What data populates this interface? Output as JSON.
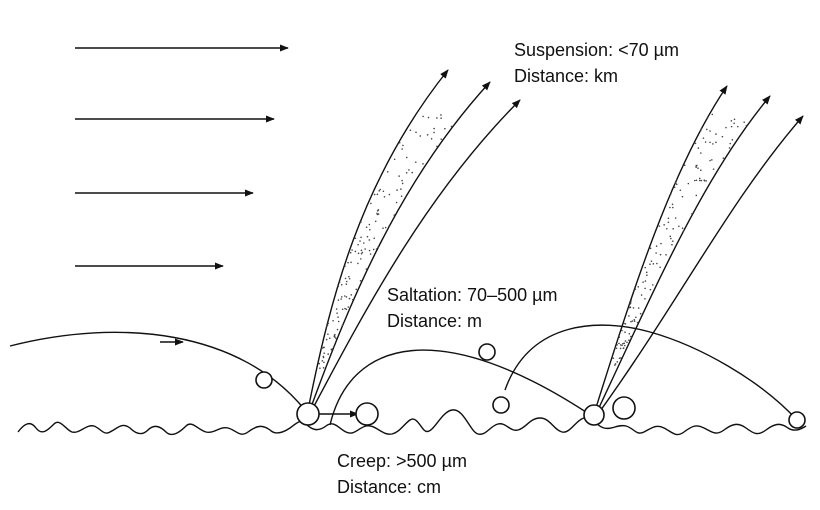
{
  "labels": {
    "suspension": {
      "size": "Suspension: <70 µm",
      "distance": "Distance: km"
    },
    "saltation": {
      "size": "Saltation: 70–500 µm",
      "distance": "Distance: m"
    },
    "creep": {
      "size": "Creep: >500 µm",
      "distance": "Distance: cm"
    }
  },
  "colors": {
    "stroke": "#111111",
    "background": "#ffffff"
  }
}
